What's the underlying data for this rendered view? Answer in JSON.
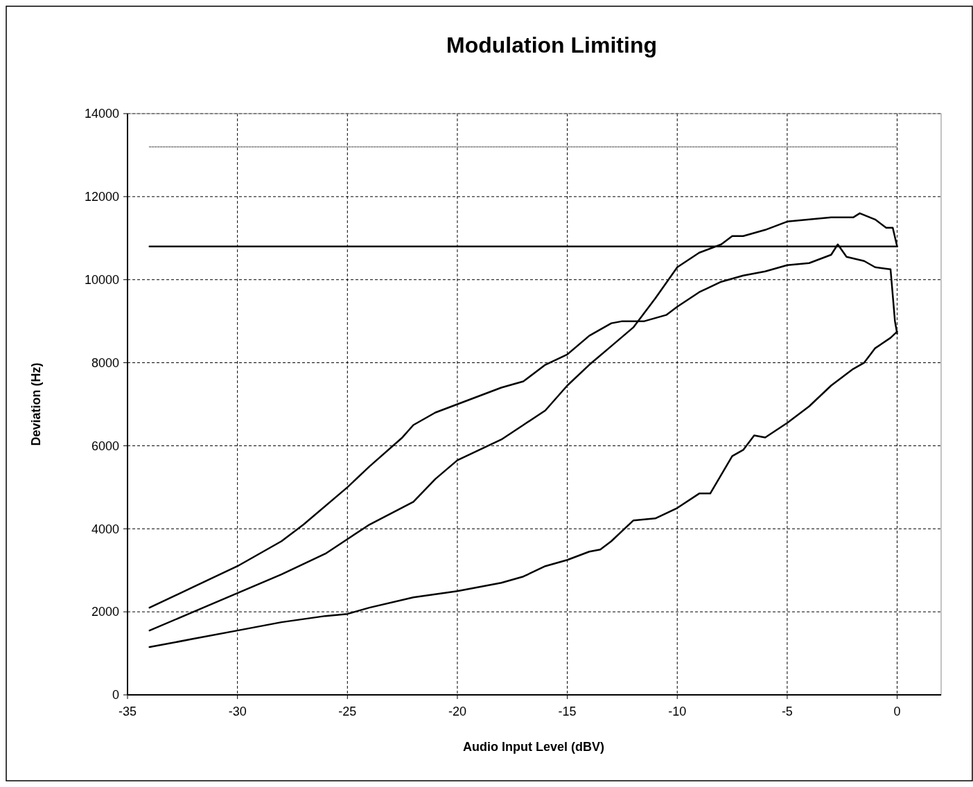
{
  "chart_data": {
    "type": "line",
    "title": "Modulation Limiting",
    "xlabel": "Audio Input Level (dBV)",
    "ylabel": "Deviation (Hz)",
    "xlim": [
      -35,
      2
    ],
    "xticks": [
      -35,
      -30,
      -25,
      -20,
      -15,
      -10,
      -5,
      0
    ],
    "ylim": [
      0,
      14000
    ],
    "yticks": [
      0,
      2000,
      4000,
      6000,
      8000,
      10000,
      12000,
      14000
    ],
    "grid": true,
    "marker": "none",
    "series": [
      {
        "color": "#a0a0a0",
        "line_style": "dotted",
        "x": [
          -34,
          0
        ],
        "values": [
          13200,
          13200
        ]
      },
      {
        "color": "#000000",
        "line_style": "solid",
        "x": [
          -34,
          0
        ],
        "values": [
          10800,
          10800
        ]
      },
      {
        "color": "#000000",
        "line_style": "solid",
        "x": [
          -34,
          -32,
          -30,
          -28,
          -27,
          -25,
          -24,
          -22.5,
          -22,
          -21,
          -20,
          -19,
          -18,
          -17,
          -16,
          -15,
          -14,
          -13,
          -12.5,
          -11.5,
          -10.5,
          -10,
          -9,
          -8,
          -7,
          -6,
          -5,
          -4,
          -3,
          -2.7,
          -2.3,
          -1.5,
          -1,
          -0.3,
          -0.1,
          0
        ],
        "values": [
          2100,
          2600,
          3100,
          3700,
          4100,
          5000,
          5500,
          6200,
          6500,
          6800,
          7000,
          7200,
          7400,
          7550,
          7950,
          8200,
          8650,
          8950,
          9000,
          9000,
          9150,
          9350,
          9700,
          9950,
          10100,
          10200,
          10350,
          10400,
          10600,
          10850,
          10550,
          10450,
          10300,
          10250,
          9000,
          8700
        ]
      },
      {
        "color": "#000000",
        "line_style": "solid",
        "x": [
          -34,
          -32,
          -30,
          -28,
          -26,
          -25,
          -24,
          -22,
          -21,
          -20,
          -19,
          -18,
          -17,
          -16,
          -15,
          -14,
          -13,
          -12,
          -11,
          -10,
          -9,
          -8,
          -7.5,
          -7,
          -6,
          -5,
          -4,
          -3,
          -2,
          -1.7,
          -1,
          -0.5,
          -0.2,
          0
        ],
        "values": [
          1550,
          2000,
          2450,
          2900,
          3400,
          3750,
          4100,
          4650,
          5200,
          5650,
          5900,
          6150,
          6500,
          6850,
          7450,
          7950,
          8400,
          8850,
          9550,
          10300,
          10650,
          10850,
          11050,
          11050,
          11200,
          11400,
          11450,
          11500,
          11500,
          11600,
          11450,
          11250,
          11250,
          10800
        ]
      },
      {
        "color": "#000000",
        "line_style": "solid",
        "x": [
          -34,
          -32,
          -30,
          -28,
          -26,
          -25,
          -24,
          -22,
          -20,
          -18,
          -17,
          -16,
          -15,
          -14,
          -13.5,
          -13,
          -12,
          -11,
          -10,
          -9,
          -8.5,
          -8,
          -7.5,
          -7,
          -6.5,
          -6,
          -5,
          -4,
          -3,
          -2,
          -1.5,
          -1,
          -0.3,
          0
        ],
        "values": [
          1150,
          1350,
          1550,
          1750,
          1900,
          1950,
          2100,
          2350,
          2500,
          2700,
          2850,
          3100,
          3250,
          3450,
          3500,
          3700,
          4200,
          4250,
          4500,
          4850,
          4850,
          5300,
          5750,
          5900,
          6250,
          6200,
          6550,
          6950,
          7450,
          7850,
          8000,
          8350,
          8600,
          8750
        ]
      }
    ]
  }
}
